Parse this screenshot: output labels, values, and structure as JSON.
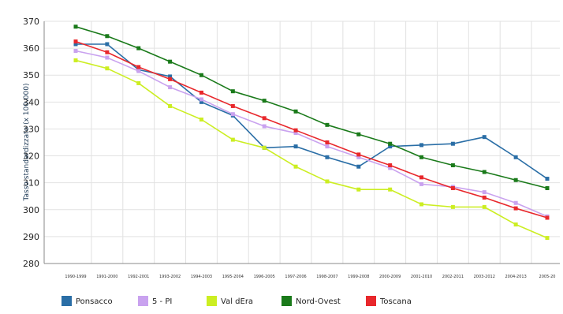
{
  "chart_data": {
    "type": "line",
    "title": "",
    "xlabel": "",
    "ylabel": "Tasso standardizzato (x 100.000)",
    "ylim": [
      280,
      370
    ],
    "yticks": [
      280,
      290,
      300,
      310,
      320,
      330,
      340,
      350,
      360,
      370
    ],
    "grid": true,
    "legend_position": "bottom",
    "categories": [
      "1990-1999",
      "1991-2000",
      "1992-2001",
      "1993-2002",
      "1994-2003",
      "1995-2004",
      "1996-2005",
      "1997-2006",
      "1998-2007",
      "1999-2008",
      "2000-2009",
      "2001-2010",
      "2002-2011",
      "2003-2012",
      "2004-2013",
      "2005-20"
    ],
    "series": [
      {
        "name": "Ponsacco",
        "color": "#2a6ea6",
        "values": [
          361.5,
          361.5,
          352,
          349.5,
          340,
          335,
          323,
          323.5,
          319.5,
          316,
          323.5,
          324,
          324.5,
          327,
          319.5,
          311.5
        ]
      },
      {
        "name": "5 - PI",
        "color": "#c9a2ef",
        "values": [
          359,
          356.5,
          351.5,
          345.5,
          341,
          335.5,
          331,
          328.5,
          323.5,
          319.5,
          315.5,
          309.5,
          308.5,
          306.5,
          302.5,
          297.5
        ]
      },
      {
        "name": "Val dEra",
        "color": "#ccee22",
        "values": [
          355.5,
          352.5,
          347,
          338.5,
          333.5,
          326,
          323,
          316,
          310.5,
          307.5,
          307.5,
          302,
          301,
          301,
          294.5,
          289.5
        ]
      },
      {
        "name": "Nord-Ovest",
        "color": "#1a7a1a",
        "values": [
          368,
          364.5,
          360,
          355,
          350,
          344,
          340.5,
          336.5,
          331.5,
          328,
          324.5,
          319.5,
          316.5,
          314,
          311,
          308
        ]
      },
      {
        "name": "Toscana",
        "color": "#e8282c",
        "values": [
          362.5,
          358.5,
          353,
          348.5,
          343.5,
          338.5,
          334,
          329.5,
          325,
          320.5,
          316.5,
          312,
          308,
          304.5,
          300.5,
          297
        ]
      }
    ]
  }
}
